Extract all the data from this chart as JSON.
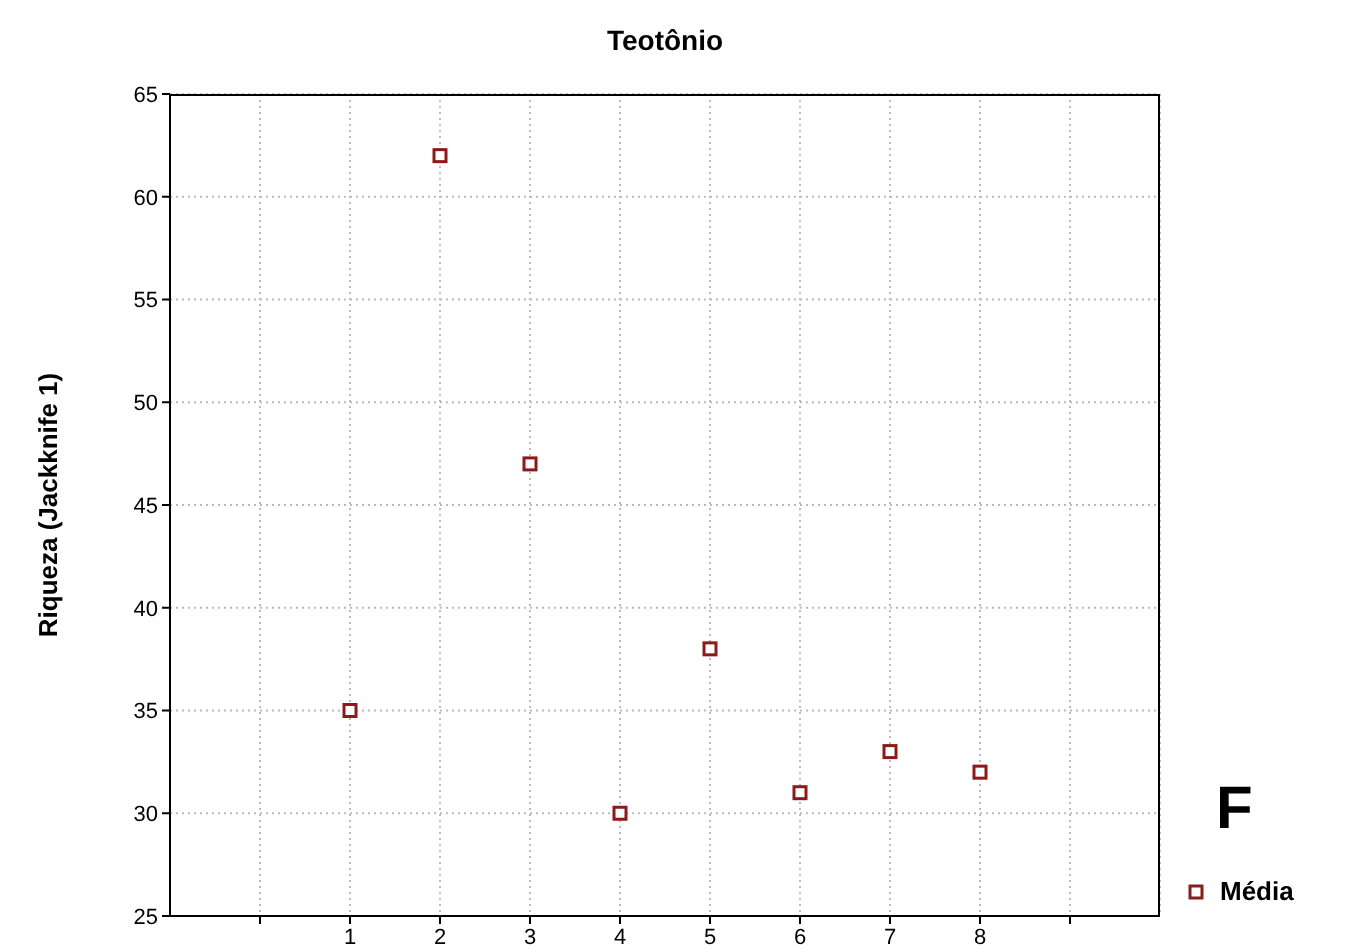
{
  "chart_data": {
    "type": "scatter",
    "title": "Teotônio",
    "ylabel": "Riqueza (Jackknife 1)",
    "x": [
      1,
      2,
      3,
      4,
      5,
      6,
      7,
      8
    ],
    "series": [
      {
        "name": "Média",
        "color": "#8b1a1a",
        "values": [
          35,
          62,
          47,
          30,
          38,
          31,
          33,
          32
        ]
      }
    ],
    "xlim": [
      -1,
      10
    ],
    "xticks": [
      {
        "value": 0,
        "label": null
      },
      1,
      2,
      3,
      4,
      5,
      6,
      7,
      8,
      {
        "value": 9,
        "label": null
      }
    ],
    "ylim": [
      25,
      65
    ],
    "yticks": [
      25,
      30,
      35,
      40,
      45,
      50,
      55,
      60,
      65
    ],
    "grid": true,
    "legend": "bottom right",
    "marker": "square",
    "annotations": [
      "F"
    ]
  }
}
